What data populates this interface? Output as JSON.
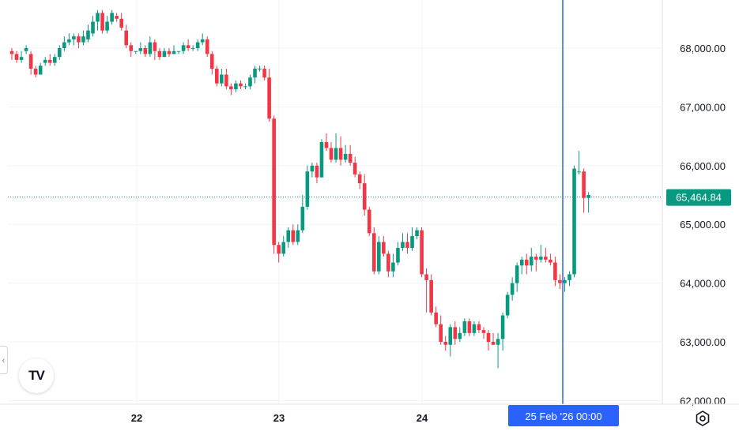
{
  "chart_data": {
    "type": "candlestick",
    "y_ticks": [
      "68,000.00",
      "67,000.00",
      "66,000.00",
      "65,000.00",
      "64,000.00",
      "63,000.00",
      "62,000.00"
    ],
    "y_tick_values": [
      68000,
      67000,
      66000,
      65000,
      64000,
      63000,
      62000
    ],
    "x_ticks": [
      "22",
      "23",
      "24"
    ],
    "ylim": [
      61900,
      68650
    ],
    "current_price": 65464.84,
    "current_price_label": "65,464.84",
    "crosshair_label": "25 Feb '26   00:00",
    "grid": true,
    "colors": {
      "up": "#089981",
      "down": "#f23645",
      "crosshair": "#2962ff",
      "price": "#089981"
    },
    "candles": [
      [
        67950,
        67900,
        68000,
        67800
      ],
      [
        67900,
        67800,
        67950,
        67750
      ],
      [
        67800,
        67850,
        67950,
        67750
      ],
      [
        67950,
        68000,
        68050,
        67900
      ],
      [
        67900,
        67650,
        67950,
        67550
      ],
      [
        67650,
        67550,
        67700,
        67500
      ],
      [
        67550,
        67700,
        67750,
        67550
      ],
      [
        67750,
        67800,
        67850,
        67700
      ],
      [
        67800,
        67750,
        67900,
        67700
      ],
      [
        67750,
        67850,
        67900,
        67700
      ],
      [
        67850,
        68000,
        68050,
        67800
      ],
      [
        68000,
        68100,
        68200,
        67950
      ],
      [
        68100,
        68150,
        68250,
        68050
      ],
      [
        68150,
        68200,
        68250,
        68050
      ],
      [
        68200,
        68100,
        68250,
        68000
      ],
      [
        68100,
        68200,
        68300,
        68050
      ],
      [
        68150,
        68300,
        68400,
        68100
      ],
      [
        68250,
        68450,
        68550,
        68200
      ],
      [
        68450,
        68600,
        68650,
        68300
      ],
      [
        68600,
        68300,
        68650,
        68250
      ],
      [
        68300,
        68450,
        68550,
        68250
      ],
      [
        68450,
        68600,
        68650,
        68400
      ],
      [
        68550,
        68500,
        68600,
        68450
      ],
      [
        68500,
        68350,
        68600,
        68300
      ],
      [
        68300,
        68050,
        68400,
        68000
      ],
      [
        68050,
        67950,
        68100,
        67850
      ],
      [
        67950,
        67950,
        67950,
        67900
      ],
      [
        67950,
        68000,
        68100,
        67900
      ],
      [
        68000,
        67900,
        68050,
        67850
      ],
      [
        67900,
        68100,
        68200,
        67850
      ],
      [
        68100,
        67950,
        68150,
        67800
      ],
      [
        67950,
        67850,
        68000,
        67800
      ],
      [
        67850,
        67950,
        68000,
        67850
      ],
      [
        67950,
        67900,
        68000,
        67850
      ],
      [
        67900,
        67950,
        68050,
        67900
      ],
      [
        67950,
        67950,
        67950,
        67900
      ],
      [
        67950,
        68050,
        68100,
        67900
      ],
      [
        68050,
        68000,
        68150,
        67950
      ],
      [
        68000,
        68000,
        68050,
        67950
      ],
      [
        68000,
        68100,
        68150,
        67950
      ],
      [
        68100,
        68150,
        68250,
        68050
      ],
      [
        68150,
        67900,
        68200,
        67850
      ],
      [
        67900,
        67650,
        67950,
        67550
      ],
      [
        67650,
        67400,
        67700,
        67350
      ],
      [
        67400,
        67550,
        67650,
        67350
      ],
      [
        67550,
        67350,
        67650,
        67300
      ],
      [
        67350,
        67300,
        67400,
        67200
      ],
      [
        67300,
        67400,
        67450,
        67250
      ],
      [
        67400,
        67350,
        67450,
        67300
      ],
      [
        67350,
        67350,
        67400,
        67300
      ],
      [
        67350,
        67500,
        67550,
        67300
      ],
      [
        67500,
        67650,
        67700,
        67400
      ],
      [
        67650,
        67650,
        67700,
        67600
      ],
      [
        67650,
        67500,
        67700,
        67450
      ],
      [
        67500,
        66800,
        67650,
        66750
      ],
      [
        66800,
        64650,
        66850,
        64500
      ],
      [
        64650,
        64500,
        64700,
        64350
      ],
      [
        64500,
        64700,
        64800,
        64450
      ],
      [
        64700,
        64900,
        64950,
        64600
      ],
      [
        64900,
        64700,
        65000,
        64650
      ],
      [
        64700,
        64900,
        65000,
        64650
      ],
      [
        64900,
        65300,
        65500,
        64850
      ],
      [
        65300,
        65900,
        66000,
        65250
      ],
      [
        65900,
        66000,
        66050,
        65800
      ],
      [
        66000,
        65800,
        66050,
        65700
      ],
      [
        65800,
        66400,
        66450,
        65800
      ],
      [
        66400,
        66300,
        66550,
        66250
      ],
      [
        66300,
        66100,
        66400,
        66050
      ],
      [
        66100,
        66300,
        66550,
        66050
      ],
      [
        66300,
        66100,
        66500,
        66000
      ],
      [
        66100,
        66200,
        66350,
        66050
      ],
      [
        66200,
        66050,
        66350,
        66000
      ],
      [
        66050,
        65850,
        66150,
        65800
      ],
      [
        65850,
        65700,
        65900,
        65600
      ],
      [
        65700,
        65250,
        65850,
        65150
      ],
      [
        65250,
        64850,
        65300,
        64800
      ],
      [
        64850,
        64200,
        64950,
        64150
      ],
      [
        64200,
        64700,
        64800,
        64150
      ],
      [
        64700,
        64500,
        64800,
        64450
      ],
      [
        64500,
        64200,
        64550,
        64100
      ],
      [
        64200,
        64350,
        64500,
        64100
      ],
      [
        64350,
        64600,
        64700,
        64300
      ],
      [
        64600,
        64700,
        64850,
        64550
      ],
      [
        64700,
        64600,
        64850,
        64500
      ],
      [
        64600,
        64800,
        64950,
        64550
      ],
      [
        64800,
        64900,
        64950,
        64750
      ],
      [
        64900,
        64150,
        64950,
        64100
      ],
      [
        64150,
        64050,
        64250,
        63500
      ],
      [
        64050,
        63500,
        64150,
        63450
      ],
      [
        63500,
        63300,
        63600,
        63250
      ],
      [
        63300,
        63000,
        63450,
        62950
      ],
      [
        63000,
        62950,
        63100,
        62850
      ],
      [
        62950,
        63250,
        63300,
        62750
      ],
      [
        63250,
        63050,
        63350,
        62950
      ],
      [
        63050,
        63150,
        63250,
        63000
      ],
      [
        63150,
        63350,
        63400,
        63100
      ],
      [
        63350,
        63150,
        63400,
        63100
      ],
      [
        63150,
        63300,
        63350,
        63100
      ],
      [
        63300,
        63200,
        63350,
        63150
      ],
      [
        63200,
        63150,
        63250,
        63050
      ],
      [
        63150,
        63000,
        63200,
        62850
      ],
      [
        63000,
        62950,
        63150,
        62950
      ],
      [
        62950,
        63050,
        63150,
        62550
      ],
      [
        63050,
        63450,
        63500,
        62850
      ],
      [
        63450,
        63800,
        63850,
        63400
      ],
      [
        63800,
        64000,
        64100,
        63700
      ],
      [
        64000,
        64300,
        64350,
        63850
      ],
      [
        64300,
        64400,
        64450,
        64150
      ],
      [
        64400,
        64300,
        64500,
        64150
      ],
      [
        64300,
        64450,
        64600,
        64200
      ],
      [
        64450,
        64400,
        64500,
        64200
      ],
      [
        64400,
        64450,
        64650,
        64350
      ],
      [
        64450,
        64400,
        64600,
        64350
      ],
      [
        64400,
        64350,
        64500,
        64300
      ],
      [
        64350,
        64050,
        64450,
        63950
      ],
      [
        64050,
        64000,
        64150,
        63900
      ],
      [
        64000,
        64050,
        64100,
        63850
      ],
      [
        64050,
        64150,
        64200,
        63950
      ],
      [
        64150,
        65950,
        66000,
        64100
      ],
      [
        65900,
        65900,
        66250,
        65850
      ],
      [
        65900,
        65450,
        65950,
        65200
      ],
      [
        65450,
        65500,
        65550,
        65200
      ]
    ]
  }
}
